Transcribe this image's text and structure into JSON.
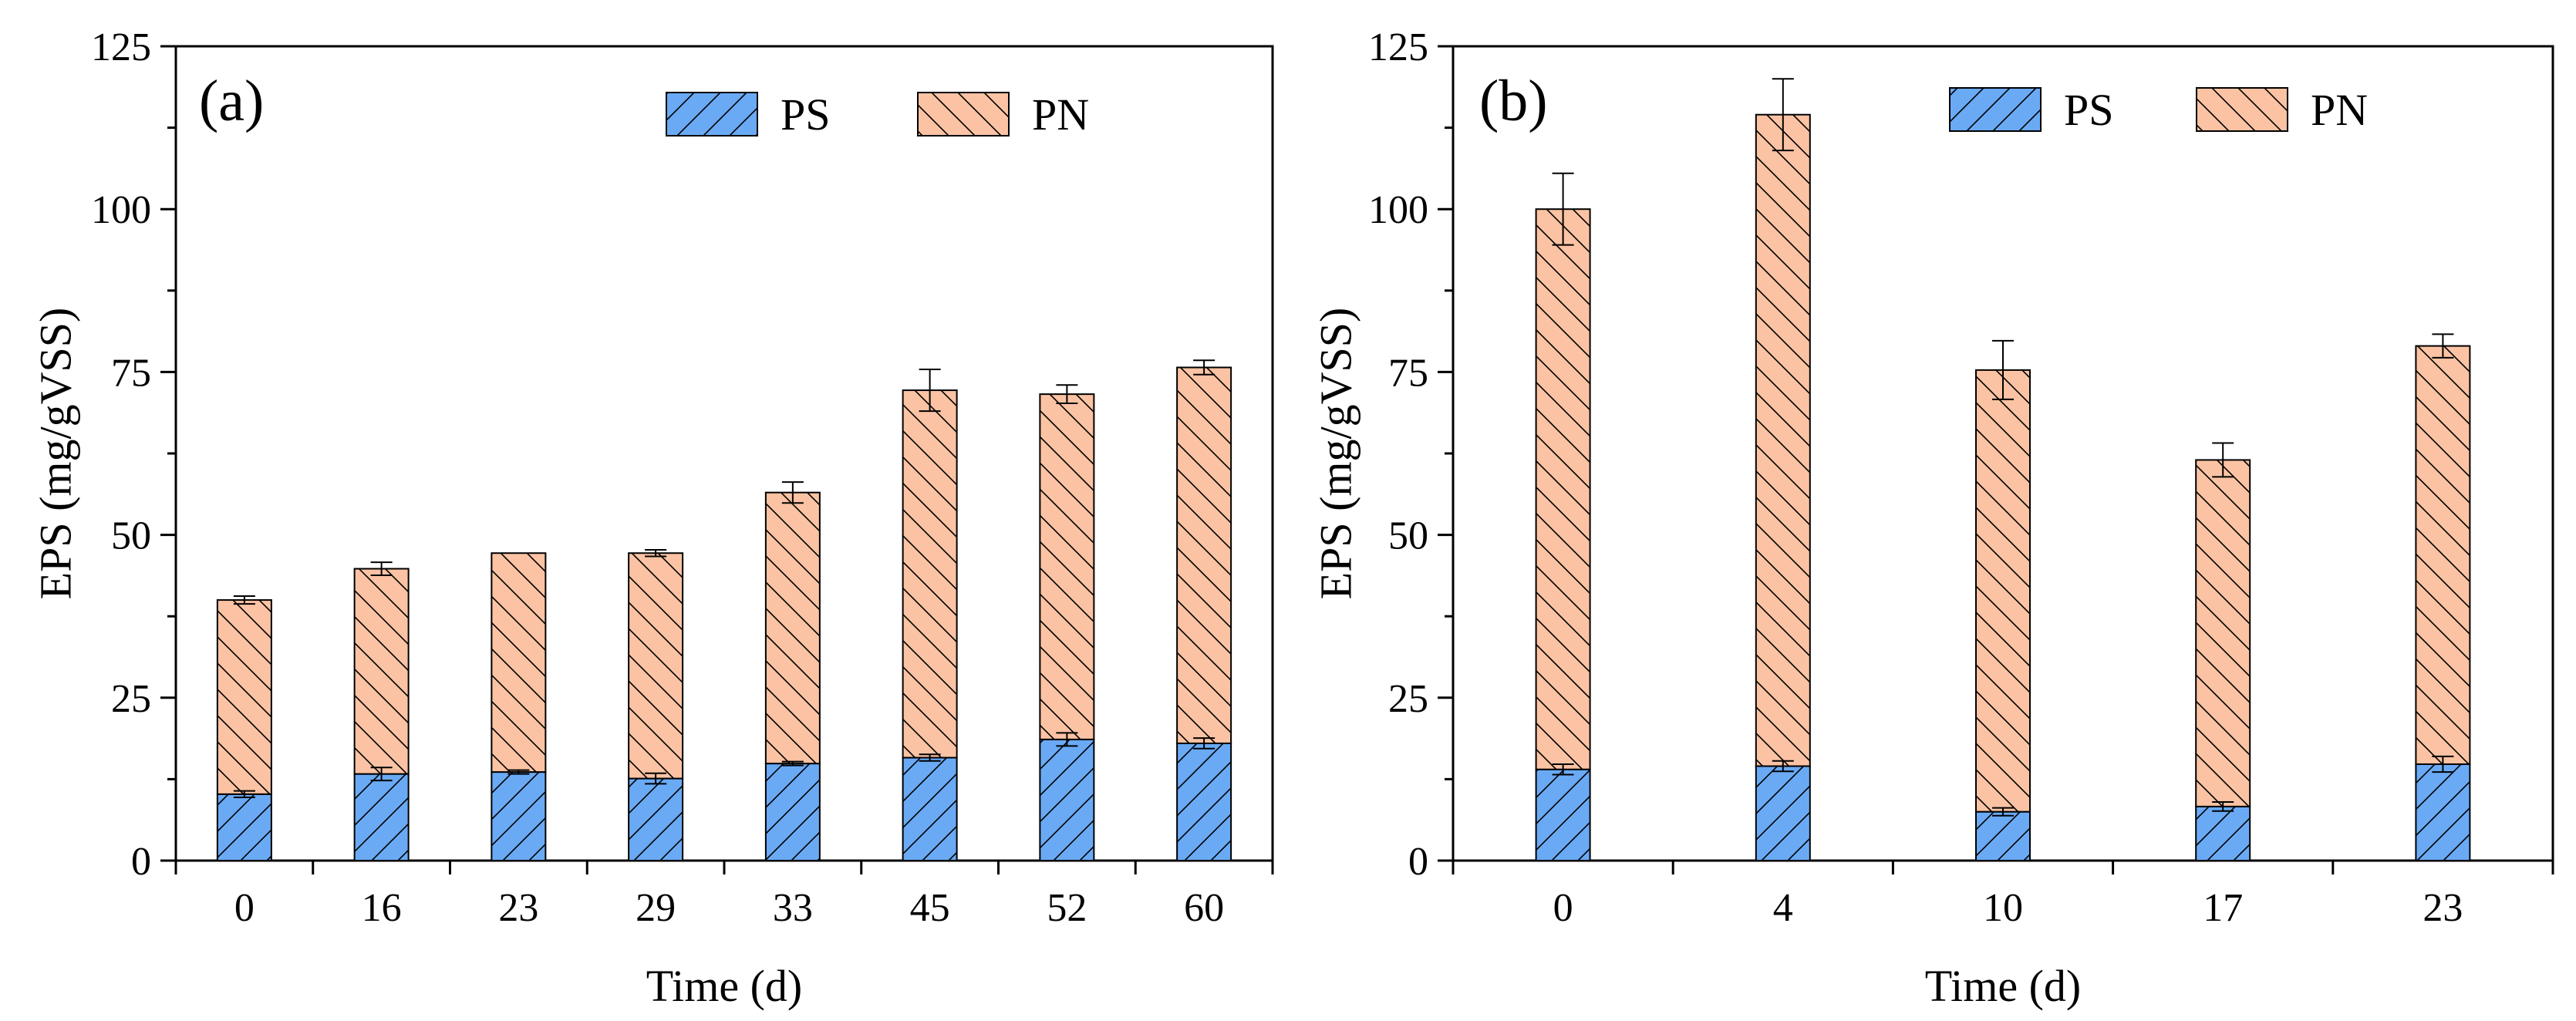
{
  "colors": {
    "ps_fill": "#6aaaf5",
    "pn_fill": "#fbc3a3",
    "stroke": "#000000",
    "background": "#ffffff"
  },
  "chart_data": [
    {
      "type": "bar",
      "stacked": true,
      "panel_label": "(a)",
      "xlabel": "Time (d)",
      "ylabel": "EPS (mg/gVSS)",
      "ylim": [
        0,
        125
      ],
      "yticks": [
        0,
        25,
        50,
        75,
        100,
        125
      ],
      "categories": [
        "0",
        "16",
        "23",
        "29",
        "33",
        "45",
        "52",
        "60"
      ],
      "series": [
        {
          "name": "PS",
          "values": [
            10.2,
            13.3,
            13.6,
            12.6,
            14.9,
            15.8,
            18.6,
            18.0
          ],
          "errors": [
            0.5,
            1.0,
            0.3,
            0.8,
            0.3,
            0.5,
            1.0,
            0.8
          ]
        },
        {
          "name": "PN",
          "values": [
            29.8,
            31.5,
            33.6,
            34.6,
            41.6,
            56.4,
            53.0,
            57.7
          ],
          "errors": [
            0.6,
            1.0,
            0.0,
            0.5,
            1.6,
            3.2,
            1.4,
            1.1
          ]
        }
      ],
      "legend": [
        "PS",
        "PN"
      ],
      "legend_position": "top"
    },
    {
      "type": "bar",
      "stacked": true,
      "panel_label": "(b)",
      "xlabel": "Time (d)",
      "ylabel": "EPS (mg/gVSS)",
      "ylim": [
        0,
        125
      ],
      "yticks": [
        0,
        25,
        50,
        75,
        100,
        125
      ],
      "categories": [
        "0",
        "4",
        "10",
        "17",
        "23"
      ],
      "series": [
        {
          "name": "PS",
          "values": [
            14.0,
            14.5,
            7.5,
            8.3,
            14.8
          ],
          "errors": [
            0.8,
            0.8,
            0.6,
            0.7,
            1.2
          ]
        },
        {
          "name": "PN",
          "values": [
            86.0,
            100.0,
            67.8,
            53.2,
            64.2
          ],
          "errors": [
            5.5,
            5.5,
            4.5,
            2.6,
            1.8
          ]
        }
      ],
      "legend": [
        "PS",
        "PN"
      ],
      "legend_position": "top"
    }
  ]
}
